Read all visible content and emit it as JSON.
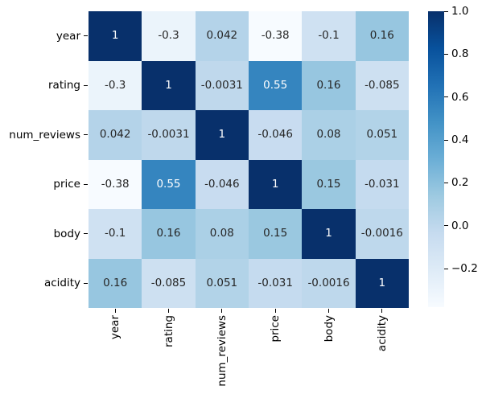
{
  "figure": {
    "background": "#ffffff"
  },
  "chart_data": {
    "type": "heatmap",
    "description": "Correlation matrix heatmap with annotated values and vertical colorbar",
    "categories": [
      "year",
      "rating",
      "num_reviews",
      "price",
      "body",
      "acidity"
    ],
    "matrix": [
      [
        1,
        -0.3,
        0.042,
        -0.38,
        -0.1,
        0.16
      ],
      [
        -0.3,
        1,
        -0.0031,
        0.55,
        0.16,
        -0.085
      ],
      [
        0.042,
        -0.0031,
        1,
        -0.046,
        0.08,
        0.051
      ],
      [
        -0.38,
        0.55,
        -0.046,
        1,
        0.15,
        -0.031
      ],
      [
        -0.1,
        0.16,
        0.08,
        0.15,
        1,
        -0.0016
      ],
      [
        0.16,
        -0.085,
        0.051,
        -0.031,
        -0.0016,
        1
      ]
    ],
    "cell_labels": [
      [
        "1",
        "-0.3",
        "0.042",
        "-0.38",
        "-0.1",
        "0.16"
      ],
      [
        "-0.3",
        "1",
        "-0.0031",
        "0.55",
        "0.16",
        "-0.085"
      ],
      [
        "0.042",
        "-0.0031",
        "1",
        "-0.046",
        "0.08",
        "0.051"
      ],
      [
        "-0.38",
        "0.55",
        "-0.046",
        "1",
        "0.15",
        "-0.031"
      ],
      [
        "-0.1",
        "0.16",
        "0.08",
        "0.15",
        "1",
        "-0.0016"
      ],
      [
        "0.16",
        "-0.085",
        "0.051",
        "-0.031",
        "-0.0016",
        "1"
      ]
    ],
    "colormap": "Blues",
    "colormap_stops": [
      "#f7fbff",
      "#deebf7",
      "#c6dbef",
      "#9ecae1",
      "#6baed6",
      "#4292c6",
      "#2171b5",
      "#08519c",
      "#08306b"
    ],
    "vmin": -0.38,
    "vmax": 1.0,
    "colorbar": {
      "position": "right",
      "tick_labels": [
        "1.0",
        "0.8",
        "0.6",
        "0.4",
        "0.2",
        "0.0",
        "−0.2"
      ],
      "tick_values": [
        1.0,
        0.8,
        0.6,
        0.4,
        0.2,
        0.0,
        -0.2
      ]
    },
    "annotation_colors": {
      "on_dark": "#ffffff",
      "on_light": "#262626"
    },
    "grid": false,
    "title": "",
    "xlabel": "",
    "ylabel": ""
  }
}
